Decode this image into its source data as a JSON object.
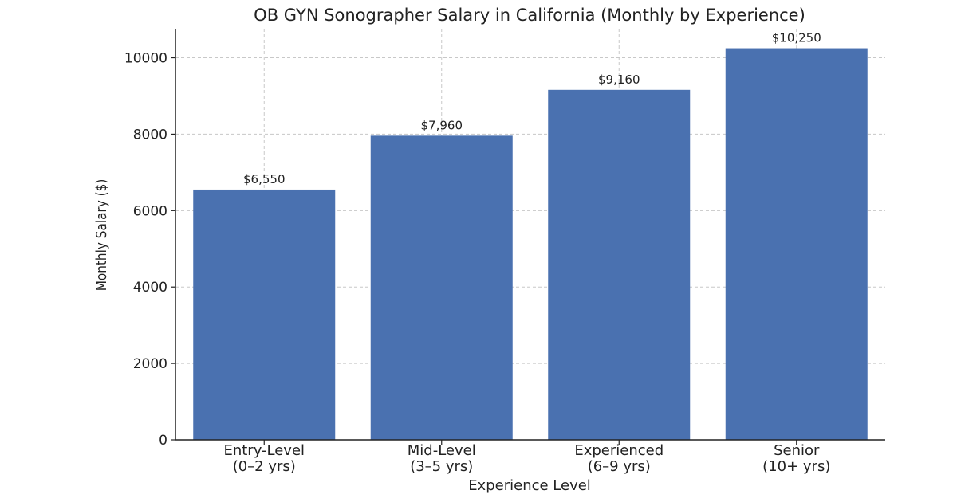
{
  "chart_data": {
    "type": "bar",
    "title": "OB GYN Sonographer Salary in California (Monthly by Experience)",
    "xlabel": "Experience Level",
    "ylabel": "Monthly Salary ($)",
    "categories": [
      [
        "Entry-Level",
        "(0–2 yrs)"
      ],
      [
        "Mid-Level",
        "(3–5 yrs)"
      ],
      [
        "Experienced",
        "(6–9 yrs)"
      ],
      [
        "Senior",
        "(10+ yrs)"
      ]
    ],
    "values": [
      6550,
      7960,
      9160,
      10250
    ],
    "data_labels": [
      "$6,550",
      "$7,960",
      "$9,160",
      "$10,250"
    ],
    "ylim": [
      0,
      10762
    ],
    "yticks": [
      0,
      2000,
      4000,
      6000,
      8000,
      10000
    ],
    "grid": true,
    "bar_color": "#4a71b0"
  }
}
